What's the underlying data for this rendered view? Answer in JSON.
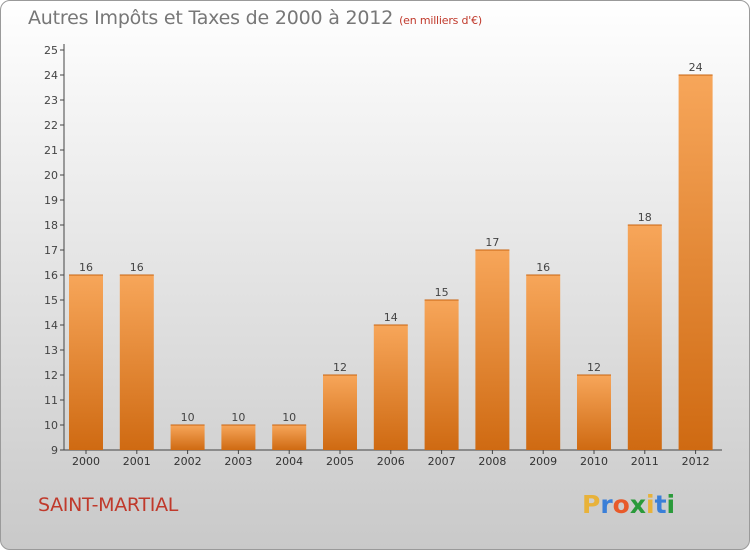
{
  "chart_data": {
    "type": "bar",
    "title": "Autres Impôts et Taxes de 2000 à 2012",
    "subtitle": "(en milliers d'€)",
    "categories": [
      "2000",
      "2001",
      "2002",
      "2003",
      "2004",
      "2005",
      "2006",
      "2007",
      "2008",
      "2009",
      "2010",
      "2011",
      "2012"
    ],
    "values": [
      16,
      16,
      10,
      10,
      10,
      12,
      14,
      15,
      17,
      16,
      12,
      18,
      24
    ],
    "ylim": [
      9,
      25
    ],
    "yticks": [
      9,
      10,
      11,
      12,
      13,
      14,
      15,
      16,
      17,
      18,
      19,
      20,
      21,
      22,
      23,
      24,
      25
    ],
    "grid": false,
    "bar_color": "#f0923a"
  },
  "commune": "SAINT-MARTIAL",
  "logo": {
    "letters": [
      "P",
      "r",
      "o",
      "x",
      "i",
      "t",
      "i"
    ],
    "colors": [
      "#e8b23a",
      "#3a7fd8",
      "#e85a2a",
      "#2a9a3a",
      "#e8b23a",
      "#3a7fd8",
      "#2a9a3a"
    ]
  }
}
